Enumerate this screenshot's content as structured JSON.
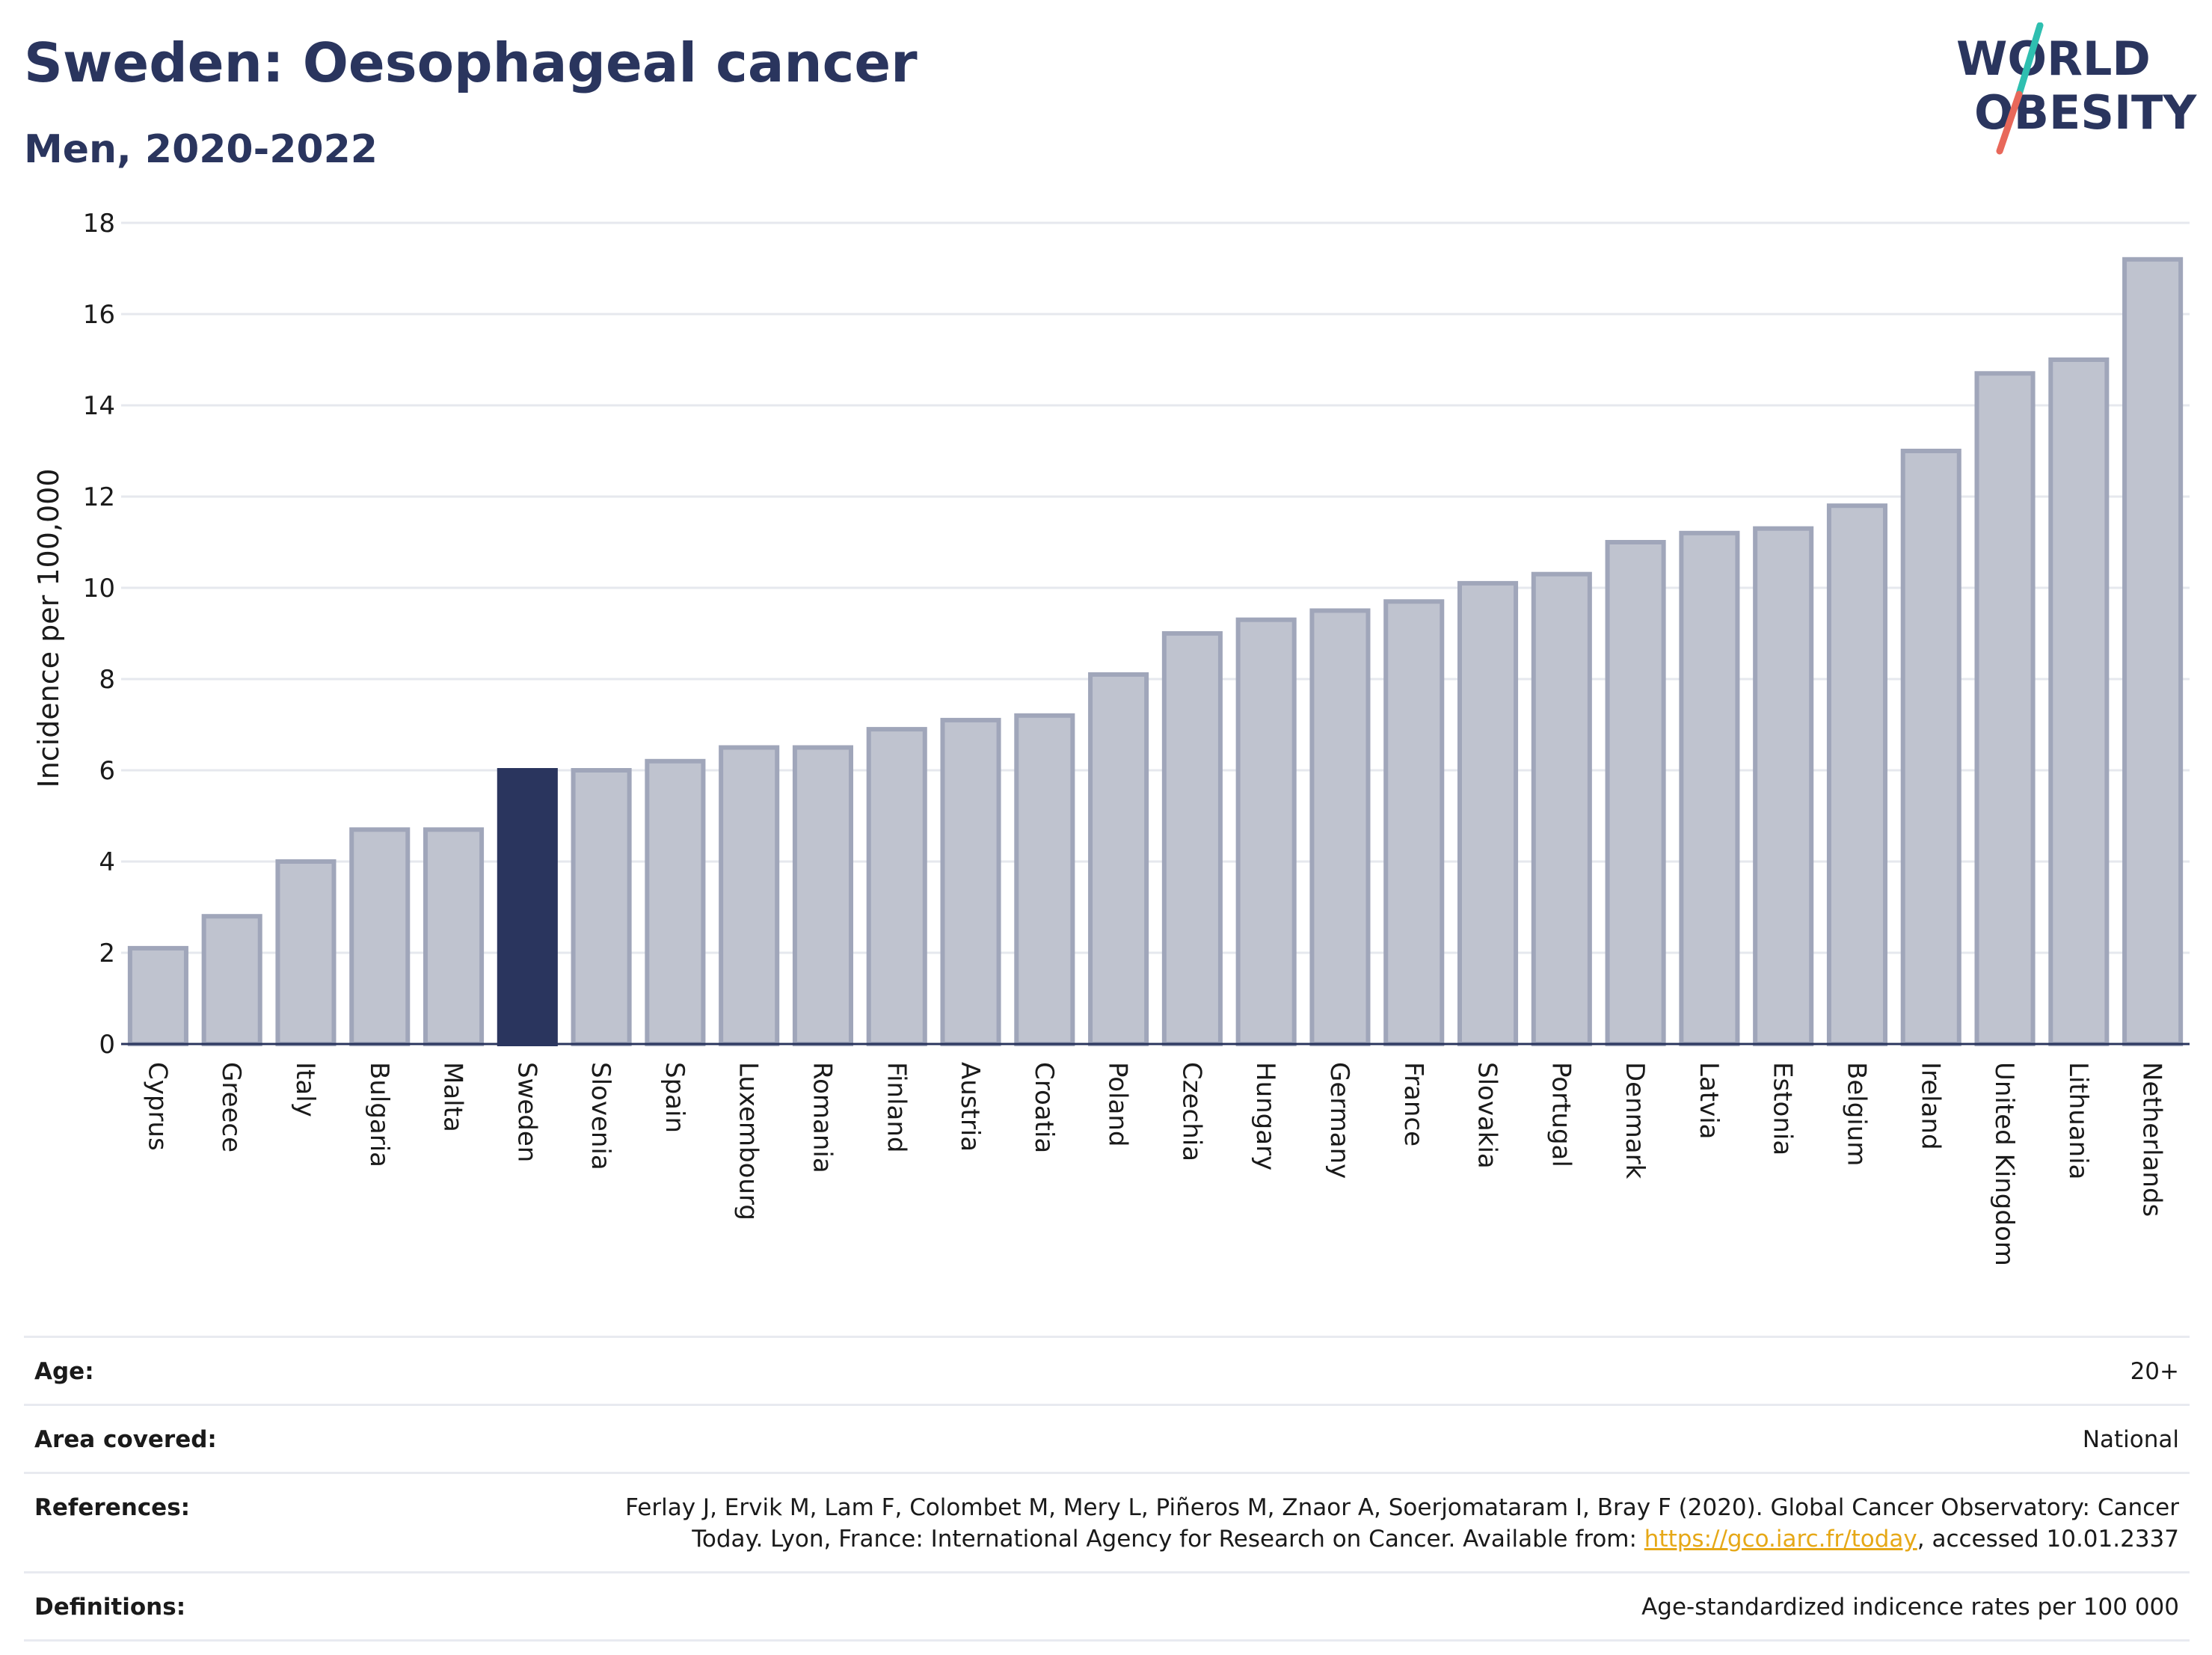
{
  "header": {
    "title": "Sweden: Oesophageal cancer",
    "subtitle": "Men, 2020-2022"
  },
  "logo": {
    "line1": "WORLD",
    "line2": "OBESITY",
    "colors": {
      "text": "#2a355e",
      "teal": "#2fbfb0",
      "coral": "#e8685a"
    }
  },
  "chart_data": {
    "type": "bar",
    "ylabel": "Incidence per 100,000",
    "ylim": [
      0,
      18
    ],
    "yticks": [
      0,
      2,
      4,
      6,
      8,
      10,
      12,
      14,
      16,
      18
    ],
    "grid": true,
    "highlight": "Sweden",
    "colors": {
      "bar": "#bfc3cf",
      "bar_edge": "#a0a6ba",
      "highlight": "#2a355e"
    },
    "categories": [
      "Cyprus",
      "Greece",
      "Italy",
      "Bulgaria",
      "Malta",
      "Sweden",
      "Slovenia",
      "Spain",
      "Luxembourg",
      "Romania",
      "Finland",
      "Austria",
      "Croatia",
      "Poland",
      "Czechia",
      "Hungary",
      "Germany",
      "France",
      "Slovakia",
      "Portugal",
      "Denmark",
      "Latvia",
      "Estonia",
      "Belgium",
      "Ireland",
      "United Kingdom",
      "Lithuania",
      "Netherlands"
    ],
    "values": [
      2.1,
      2.8,
      4.0,
      4.7,
      4.7,
      6.0,
      6.0,
      6.2,
      6.5,
      6.5,
      6.9,
      7.1,
      7.2,
      8.1,
      9.0,
      9.3,
      9.5,
      9.7,
      10.1,
      10.3,
      11.0,
      11.2,
      11.3,
      11.8,
      13.0,
      14.7,
      15.0,
      17.2
    ]
  },
  "meta": {
    "age_label": "Age:",
    "age_value": "20+",
    "area_label": "Area covered:",
    "area_value": "National",
    "references_label": "References:",
    "references_text_1": "Ferlay J, Ervik M, Lam F, Colombet M, Mery L, Piñeros M, Znaor A, Soerjomataram I, Bray F (2020). Global Cancer Observatory: Cancer",
    "references_text_2": "Today. Lyon, France: International Agency for Research on Cancer. Available from: ",
    "references_link": "https://gco.iarc.fr/today",
    "references_text_3": ", accessed 10.01.2337",
    "definitions_label": "Definitions:",
    "definitions_value": "Age-standardized indicence rates per 100 000"
  }
}
